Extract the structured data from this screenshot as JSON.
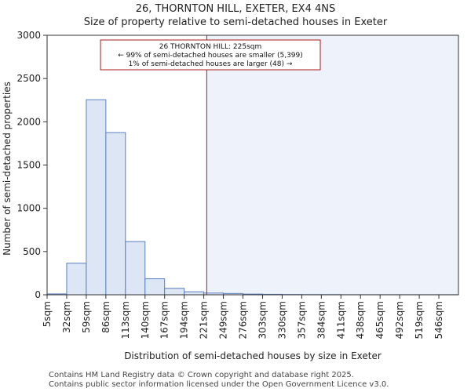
{
  "header": {
    "title": "26, THORNTON HILL, EXETER, EX4 4NS",
    "subtitle": "Size of property relative to semi-detached houses in Exeter"
  },
  "chart_data": {
    "type": "bar",
    "categories": [
      "5sqm",
      "32sqm",
      "59sqm",
      "86sqm",
      "113sqm",
      "140sqm",
      "167sqm",
      "194sqm",
      "221sqm",
      "249sqm",
      "276sqm",
      "303sqm",
      "330sqm",
      "357sqm",
      "384sqm",
      "411sqm",
      "438sqm",
      "465sqm",
      "492sqm",
      "519sqm",
      "546sqm"
    ],
    "values": [
      10,
      365,
      2255,
      1875,
      615,
      185,
      75,
      35,
      20,
      15,
      8,
      5,
      3,
      2,
      2,
      1,
      1,
      1,
      1,
      1,
      1
    ],
    "xlabel": "Distribution of semi-detached houses by size in Exeter",
    "ylabel": "Number of semi-detached properties",
    "ylim": [
      0,
      3000
    ],
    "yticks": [
      0,
      500,
      1000,
      1500,
      2000,
      2500,
      3000
    ],
    "marker_bin_position": 8.15,
    "bar_color": "#dce6f4",
    "bar_edge": "#5a7fbf",
    "highlight_bg": "#eef2fa",
    "marker_color": "#aa1a1a",
    "annotation": {
      "line1": "26 THORNTON HILL: 225sqm",
      "line2": "← 99% of semi-detached houses are smaller (5,399)",
      "line3": "1% of semi-detached houses are larger (48) →"
    }
  },
  "footer": {
    "line1": "Contains HM Land Registry data © Crown copyright and database right 2025.",
    "line2": "Contains public sector information licensed under the Open Government Licence v3.0."
  }
}
